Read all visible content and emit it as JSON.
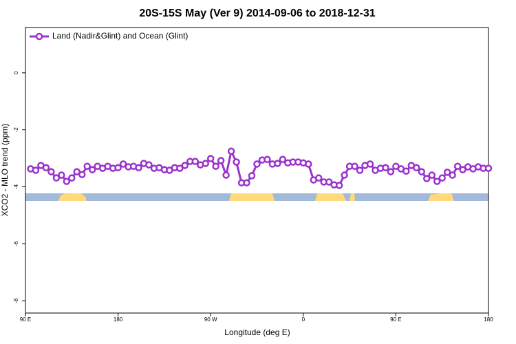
{
  "chart_data": {
    "type": "line",
    "title": "20S-15S May (Ver 9)   2014-09-06 to 2018-12-31",
    "x_label": "Longitude (deg E)",
    "y_label": "XCO2 - MLO trend (ppm)",
    "xlim": [
      90,
      540
    ],
    "ylim": [
      -8.43,
      1.59
    ],
    "xticks": [
      {
        "value": 90,
        "label": "90 E"
      },
      {
        "value": 180,
        "label": "180"
      },
      {
        "value": 270,
        "label": "90 W"
      },
      {
        "value": 360,
        "label": "0"
      },
      {
        "value": 450,
        "label": "90 E"
      },
      {
        "value": 540,
        "label": "180"
      }
    ],
    "yticks": [
      0,
      -2,
      -4,
      -6,
      -8
    ],
    "legend": "top-left",
    "x": [
      95,
      100,
      105,
      110,
      115,
      120,
      125,
      130,
      135,
      140,
      145,
      150,
      155,
      160,
      165,
      170,
      175,
      180,
      185,
      190,
      195,
      200,
      205,
      210,
      215,
      220,
      225,
      230,
      235,
      240,
      245,
      250,
      255,
      260,
      265,
      270,
      275,
      280,
      285,
      290,
      295,
      300,
      305,
      310,
      315,
      320,
      325,
      330,
      335,
      340,
      345,
      350,
      355,
      360,
      365,
      370,
      375,
      380,
      385,
      390,
      395,
      400,
      405,
      410,
      415,
      420,
      425,
      430,
      435,
      440,
      445,
      450,
      455,
      460,
      465,
      470,
      475,
      480,
      485,
      490,
      495,
      500,
      505,
      510,
      515,
      520,
      525,
      530,
      535,
      540
    ],
    "series": [
      {
        "name": "Land (Nadir&Glint) and Ocean (Glint)",
        "color": "#9a32cd",
        "values": [
          -3.37,
          -3.42,
          -3.25,
          -3.33,
          -3.47,
          -3.69,
          -3.59,
          -3.81,
          -3.69,
          -3.47,
          -3.57,
          -3.28,
          -3.4,
          -3.28,
          -3.35,
          -3.28,
          -3.35,
          -3.33,
          -3.2,
          -3.3,
          -3.28,
          -3.33,
          -3.18,
          -3.23,
          -3.35,
          -3.33,
          -3.4,
          -3.42,
          -3.33,
          -3.35,
          -3.25,
          -3.11,
          -3.11,
          -3.23,
          -3.18,
          -3.01,
          -3.28,
          -3.08,
          -3.59,
          -2.75,
          -3.13,
          -3.86,
          -3.86,
          -3.61,
          -3.2,
          -3.06,
          -3.04,
          -3.2,
          -3.18,
          -3.04,
          -3.16,
          -3.13,
          -3.13,
          -3.16,
          -3.2,
          -3.76,
          -3.69,
          -3.83,
          -3.83,
          -3.93,
          -3.95,
          -3.59,
          -3.28,
          -3.28,
          -3.42,
          -3.25,
          -3.2,
          -3.42,
          -3.35,
          -3.33,
          -3.47,
          -3.28,
          -3.37,
          -3.45,
          -3.25,
          -3.33,
          -3.47,
          -3.71,
          -3.59,
          -3.81,
          -3.69,
          -3.49,
          -3.59,
          -3.28,
          -3.4,
          -3.3,
          -3.37,
          -3.3,
          -3.35,
          -3.35
        ]
      }
    ]
  }
}
